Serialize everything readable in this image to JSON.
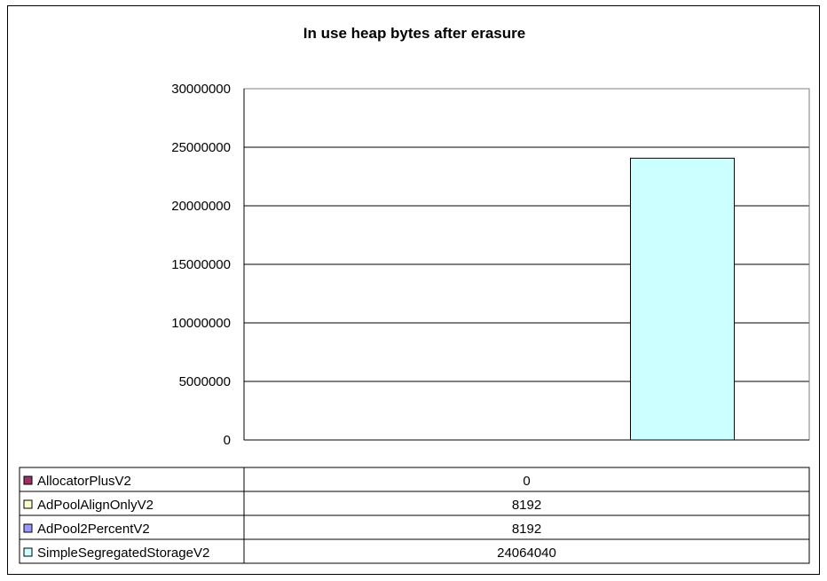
{
  "chart_data": {
    "type": "bar",
    "title": "In use heap bytes after erasure",
    "xlabel": "",
    "ylabel": "",
    "ylim": [
      0,
      30000000
    ],
    "yticks": [
      0,
      5000000,
      10000000,
      15000000,
      20000000,
      25000000,
      30000000
    ],
    "grid": true,
    "legend": "data-table-bottom",
    "series": [
      {
        "name": "AllocatorPlusV2",
        "value": 0,
        "color": "#993366"
      },
      {
        "name": "AdPoolAlignOnlyV2",
        "value": 8192,
        "color": "#ffffcc"
      },
      {
        "name": "AdPool2PercentV2",
        "value": 8192,
        "color": "#9999ff"
      },
      {
        "name": "SimpleSegregatedStorageV2",
        "value": 24064040,
        "color": "#ccffff"
      }
    ]
  }
}
